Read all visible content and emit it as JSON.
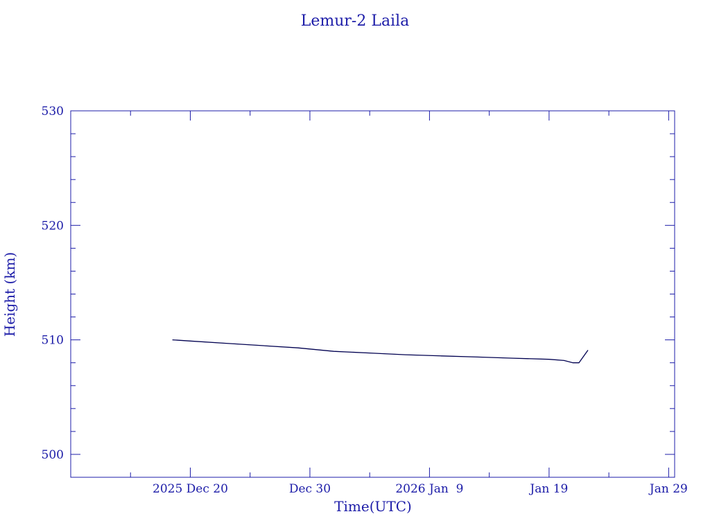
{
  "chart_data": {
    "type": "line",
    "title": "Lemur-2 Laila",
    "xlabel": "Time(UTC)",
    "ylabel": "Height (km)",
    "ylim": [
      498,
      530
    ],
    "xlim": [
      "2025-12-10",
      "2026-01-29T12:00"
    ],
    "x_tick_labels": [
      {
        "date": "2025-12-20",
        "label": "2025 Dec 20"
      },
      {
        "date": "2025-12-30",
        "label": "Dec 30"
      },
      {
        "date": "2026-01-09",
        "label": "2026 Jan  9"
      },
      {
        "date": "2026-01-19",
        "label": "Jan 19"
      },
      {
        "date": "2026-01-29",
        "label": "Jan 29"
      }
    ],
    "y_ticks": [
      500,
      510,
      520,
      530
    ],
    "grid": false,
    "colors": {
      "axes": "#1c1ca8",
      "line": "#000050"
    },
    "series": [
      {
        "x": [
          "2025-12-18T12:00",
          "2025-12-20",
          "2025-12-23",
          "2025-12-26",
          "2025-12-29",
          "2026-01-01",
          "2026-01-04",
          "2026-01-07",
          "2026-01-10",
          "2026-01-13",
          "2026-01-16",
          "2026-01-19",
          "2026-01-20T06:00",
          "2026-01-21",
          "2026-01-21T12:00",
          "2026-01-22T06:00"
        ],
        "y": [
          510.0,
          509.9,
          509.7,
          509.5,
          509.3,
          509.0,
          508.85,
          508.7,
          508.6,
          508.5,
          508.4,
          508.3,
          508.2,
          508.0,
          508.0,
          509.1
        ]
      }
    ]
  }
}
